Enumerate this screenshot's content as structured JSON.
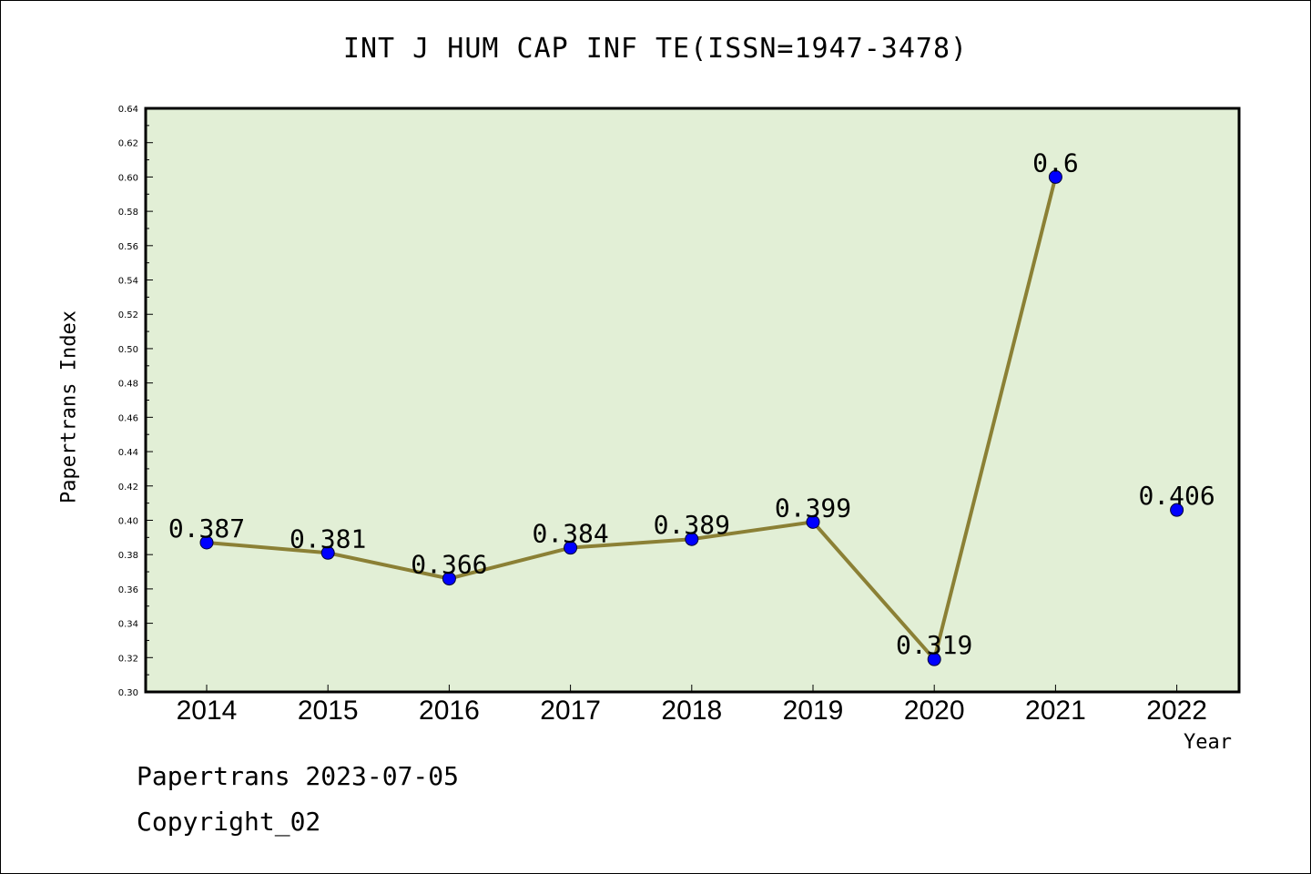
{
  "chart_data": {
    "type": "line",
    "title": "INT J HUM CAP INF TE(ISSN=1947-3478)",
    "xlabel": "Year",
    "ylabel": "Papertrans Index",
    "categories": [
      "2014",
      "2015",
      "2016",
      "2017",
      "2018",
      "2019",
      "2020",
      "2021",
      "2022"
    ],
    "series": [
      {
        "values": [
          0.387,
          0.381,
          0.366,
          0.384,
          0.389,
          0.399,
          0.319,
          0.6,
          0.406
        ]
      }
    ],
    "data_labels": [
      "0.387",
      "0.381",
      "0.366",
      "0.384",
      "0.389",
      "0.399",
      "0.319",
      "0.6",
      "0.406"
    ],
    "ylim": [
      0.3,
      0.64
    ],
    "yticks": [
      "0.30",
      "0.32",
      "0.34",
      "0.36",
      "0.38",
      "0.40",
      "0.42",
      "0.44",
      "0.46",
      "0.48",
      "0.50",
      "0.52",
      "0.54",
      "0.56",
      "0.58",
      "0.60",
      "0.62",
      "0.64"
    ],
    "plot_background": "#e2efd6",
    "line_color": "#8b8035",
    "marker_color": "#0000ff",
    "grid": false,
    "connected_through_index": 7
  },
  "footer": {
    "line1": "Papertrans 2023-07-05",
    "line2": "Copyright_02"
  }
}
